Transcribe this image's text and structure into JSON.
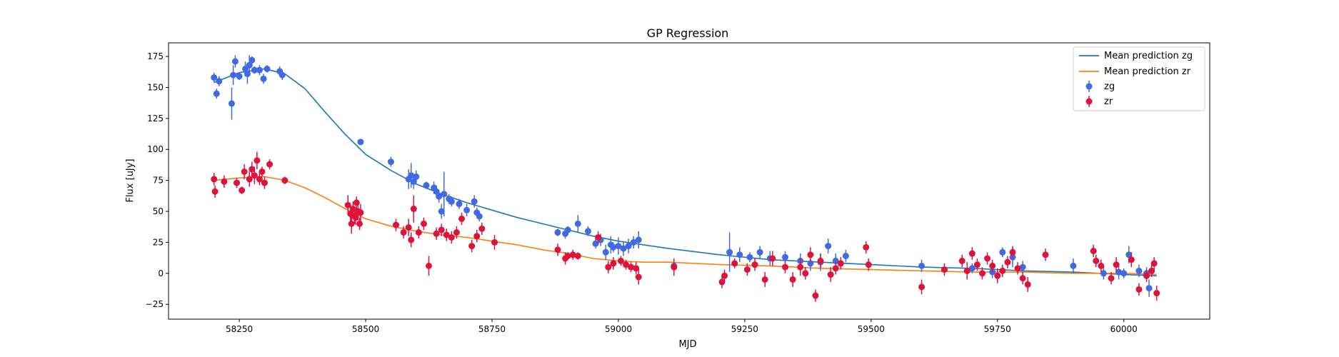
{
  "chart_data": {
    "type": "scatter",
    "title": "GP Regression",
    "xlabel": "MJD",
    "ylabel": "Flux [uJy]",
    "xlim": [
      58110,
      60170
    ],
    "ylim": [
      -37,
      186
    ],
    "xticks": [
      58250,
      58500,
      58750,
      59000,
      59250,
      59500,
      59750,
      60000
    ],
    "yticks": [
      -25,
      0,
      25,
      50,
      75,
      100,
      125,
      150,
      175
    ],
    "legend": {
      "placement": "top-right"
    },
    "series": [
      {
        "name": "Mean prediction zg",
        "kind": "line",
        "color": "#1f77b4",
        "x": [
          58200,
          58250,
          58300,
          58340,
          58380,
          58420,
          58460,
          58500,
          58550,
          58600,
          58650,
          58700,
          58750,
          58800,
          58850,
          58900,
          58950,
          59000,
          59050,
          59100,
          59200,
          59300,
          59400,
          59500,
          59600,
          59700,
          59800,
          59900,
          60000,
          60065
        ],
        "y": [
          154,
          162,
          165,
          161,
          149,
          130,
          112,
          96,
          83,
          72,
          64,
          57,
          51,
          45,
          40,
          35,
          30,
          26,
          23,
          20,
          15,
          11,
          9,
          7,
          5,
          4,
          2,
          1,
          -1,
          -2
        ]
      },
      {
        "name": "Mean prediction zr",
        "kind": "line",
        "color": "#ff7f0e",
        "x": [
          58200,
          58250,
          58300,
          58340,
          58380,
          58420,
          58460,
          58500,
          58550,
          58600,
          58650,
          58700,
          58750,
          58800,
          58850,
          58900,
          58950,
          59000,
          59050,
          59100,
          59200,
          59300,
          59400,
          59500,
          59600,
          59700,
          59800,
          59900,
          60000,
          60065
        ],
        "y": [
          75,
          77,
          78,
          75,
          69,
          61,
          52,
          44,
          38,
          34,
          31,
          29,
          26,
          23,
          19,
          16,
          12,
          10,
          9,
          9,
          7,
          6,
          4,
          3,
          2,
          1,
          1,
          0,
          0,
          -1
        ]
      },
      {
        "name": "zg",
        "kind": "errorbar",
        "color": "#4169e1",
        "x": [
          58200,
          58205,
          58210,
          58235,
          58238,
          58242,
          58250,
          58262,
          58266,
          58270,
          58275,
          58280,
          58290,
          58298,
          58305,
          58330,
          58335,
          58490,
          58550,
          58585,
          58590,
          58595,
          58600,
          58620,
          58635,
          58640,
          58645,
          58650,
          58655,
          58665,
          58670,
          58685,
          58700,
          58715,
          58720,
          58725,
          58880,
          58895,
          58900,
          58920,
          58940,
          58955,
          58965,
          58975,
          58985,
          58990,
          59000,
          59010,
          59020,
          59030,
          59040,
          59110,
          59220,
          59240,
          59260,
          59280,
          59300,
          59330,
          59360,
          59380,
          59400,
          59415,
          59430,
          59450,
          59600,
          59700,
          59740,
          59760,
          59780,
          59800,
          59900,
          59960,
          59990,
          60000,
          60010,
          60030,
          60045,
          60050
        ],
        "y": [
          158,
          145,
          155,
          137,
          160,
          171,
          159,
          165,
          161,
          168,
          172,
          164,
          164,
          157,
          165,
          163,
          160,
          106,
          90,
          76,
          79,
          74,
          78,
          71,
          69,
          66,
          62,
          50,
          64,
          60,
          58,
          56,
          51,
          58,
          49,
          46,
          33,
          32,
          35,
          40,
          34,
          24,
          27,
          17,
          23,
          21,
          22,
          20,
          22,
          25,
          27,
          6,
          17,
          15,
          13,
          17,
          12,
          13,
          10,
          8,
          9,
          22,
          10,
          14,
          6,
          4,
          1,
          17,
          13,
          5,
          6,
          0,
          1,
          0,
          15,
          2,
          0,
          -12
        ],
        "err": [
          4,
          4,
          4,
          13,
          8,
          5,
          3,
          6,
          8,
          8,
          3,
          3,
          4,
          4,
          3,
          4,
          4,
          2,
          4,
          8,
          10,
          6,
          5,
          3,
          5,
          5,
          5,
          6,
          18,
          4,
          4,
          4,
          5,
          5,
          4,
          4,
          3,
          4,
          3,
          7,
          4,
          4,
          5,
          6,
          7,
          4,
          7,
          6,
          6,
          5,
          7,
          4,
          16,
          6,
          4,
          5,
          6,
          5,
          6,
          6,
          7,
          6,
          6,
          5,
          5,
          4,
          5,
          4,
          8,
          5,
          6,
          5,
          6,
          4,
          7,
          5,
          5,
          7
        ]
      },
      {
        "name": "zr",
        "kind": "errorbar",
        "color": "#dc143c",
        "x": [
          58200,
          58202,
          58220,
          58245,
          58255,
          58260,
          58270,
          58275,
          58280,
          58285,
          58290,
          58295,
          58300,
          58310,
          58340,
          58465,
          58470,
          58472,
          58475,
          58478,
          58480,
          58482,
          58485,
          58488,
          58490,
          58560,
          58575,
          58585,
          58590,
          58595,
          58605,
          58615,
          58625,
          58640,
          58650,
          58660,
          58670,
          58680,
          58690,
          58710,
          58720,
          58730,
          58755,
          58880,
          58895,
          58900,
          58910,
          58920,
          58960,
          58980,
          58990,
          59005,
          59015,
          59025,
          59035,
          59040,
          59110,
          59205,
          59210,
          59230,
          59255,
          59270,
          59290,
          59305,
          59330,
          59345,
          59360,
          59370,
          59380,
          59390,
          59400,
          59420,
          59430,
          59440,
          59490,
          59495,
          59600,
          59645,
          59680,
          59690,
          59700,
          59710,
          59720,
          59730,
          59740,
          59750,
          59760,
          59770,
          59780,
          59790,
          59800,
          59810,
          59845,
          59940,
          59945,
          59955,
          59975,
          59985,
          60015,
          60030,
          60045,
          60055,
          60060,
          60065
        ],
        "y": [
          76,
          66,
          74,
          73,
          67,
          82,
          76,
          84,
          79,
          91,
          76,
          82,
          73,
          88,
          75,
          55,
          48,
          40,
          52,
          46,
          45,
          57,
          50,
          40,
          49,
          39,
          33,
          37,
          27,
          52,
          33,
          40,
          6,
          32,
          35,
          31,
          29,
          33,
          44,
          22,
          30,
          36,
          25,
          19,
          12,
          14,
          15,
          14,
          29,
          5,
          8,
          10,
          7,
          5,
          4,
          -3,
          5,
          -7,
          -2,
          8,
          3,
          7,
          -5,
          12,
          5,
          -5,
          5,
          0,
          15,
          -18,
          10,
          -1,
          4,
          8,
          21,
          7,
          -11,
          3,
          10,
          2,
          16,
          7,
          0,
          12,
          6,
          -2,
          2,
          9,
          17,
          4,
          -4,
          -9,
          15,
          18,
          10,
          6,
          -4,
          7,
          11,
          -13,
          -2,
          2,
          8,
          -16
        ],
        "err": [
          5,
          5,
          5,
          4,
          3,
          6,
          6,
          6,
          7,
          7,
          5,
          4,
          5,
          4,
          3,
          8,
          7,
          8,
          6,
          6,
          6,
          5,
          7,
          5,
          7,
          5,
          5,
          7,
          6,
          11,
          5,
          5,
          8,
          5,
          5,
          5,
          5,
          5,
          5,
          5,
          5,
          5,
          6,
          5,
          5,
          3,
          4,
          3,
          5,
          5,
          5,
          4,
          4,
          4,
          5,
          6,
          7,
          5,
          5,
          4,
          5,
          5,
          6,
          6,
          5,
          6,
          7,
          5,
          6,
          5,
          6,
          6,
          5,
          5,
          5,
          5,
          6,
          5,
          5,
          7,
          5,
          5,
          5,
          5,
          5,
          6,
          5,
          5,
          5,
          5,
          5,
          6,
          5,
          5,
          5,
          5,
          5,
          6,
          6,
          5,
          5,
          5,
          5,
          6
        ]
      }
    ]
  }
}
